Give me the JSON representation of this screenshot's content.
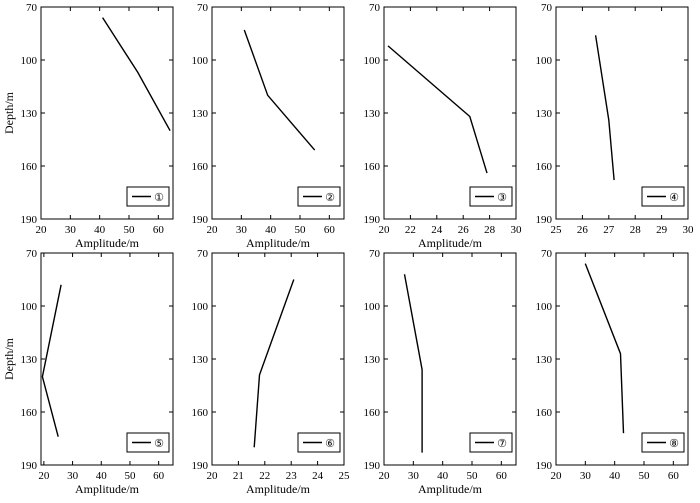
{
  "chart_data": [
    {
      "type": "line",
      "xlabel": "Amplitude/m",
      "ylabel": "Depth/m",
      "xlim": [
        20,
        65
      ],
      "ylim": [
        70,
        190
      ],
      "xticks": [
        20,
        30,
        40,
        50,
        60
      ],
      "yticks": [
        70,
        100,
        130,
        160,
        190
      ],
      "series": [
        {
          "name": "①",
          "x": [
            41,
            53,
            64
          ],
          "y": [
            76,
            107,
            140
          ]
        }
      ]
    },
    {
      "type": "line",
      "xlabel": "Amplitude/m",
      "ylabel": "",
      "xlim": [
        20,
        65
      ],
      "ylim": [
        70,
        190
      ],
      "xticks": [
        20,
        30,
        40,
        50,
        60
      ],
      "yticks": [
        70,
        100,
        130,
        160,
        190
      ],
      "series": [
        {
          "name": "②",
          "x": [
            31,
            39,
            55
          ],
          "y": [
            83,
            120,
            151
          ]
        }
      ]
    },
    {
      "type": "line",
      "xlabel": "Amplitude/m",
      "ylabel": "",
      "xlim": [
        20,
        30
      ],
      "ylim": [
        70,
        190
      ],
      "xticks": [
        20,
        22,
        24,
        26,
        28,
        30
      ],
      "yticks": [
        70,
        100,
        130,
        160,
        190
      ],
      "series": [
        {
          "name": "③",
          "x": [
            20.3,
            26.5,
            27.8
          ],
          "y": [
            92,
            132,
            164
          ]
        }
      ]
    },
    {
      "type": "line",
      "xlabel": "",
      "ylabel": "",
      "xlim": [
        25,
        30
      ],
      "ylim": [
        70,
        190
      ],
      "xticks": [
        25,
        26,
        27,
        28,
        29,
        30
      ],
      "yticks": [
        70,
        100,
        130,
        160,
        190
      ],
      "series": [
        {
          "name": "④",
          "x": [
            26.5,
            27,
            27.2
          ],
          "y": [
            86,
            134,
            168
          ]
        }
      ]
    },
    {
      "type": "line",
      "xlabel": "Amplitude/m",
      "ylabel": "Depth/m",
      "xlim": [
        19,
        65
      ],
      "ylim": [
        70,
        190
      ],
      "xticks": [
        20,
        30,
        40,
        50,
        60
      ],
      "yticks": [
        70,
        100,
        130,
        160,
        190
      ],
      "series": [
        {
          "name": "⑤",
          "x": [
            26,
            19.5,
            25
          ],
          "y": [
            88,
            140,
            174
          ]
        }
      ]
    },
    {
      "type": "line",
      "xlabel": "Amplitude/m",
      "ylabel": "",
      "xlim": [
        20,
        25
      ],
      "ylim": [
        70,
        190
      ],
      "xticks": [
        20,
        21,
        22,
        23,
        24,
        25
      ],
      "yticks": [
        70,
        100,
        130,
        160,
        190
      ],
      "series": [
        {
          "name": "⑥",
          "x": [
            23.1,
            21.8,
            21.6
          ],
          "y": [
            85,
            139,
            180
          ]
        }
      ]
    },
    {
      "type": "line",
      "xlabel": "Amplitude/m",
      "ylabel": "",
      "xlim": [
        20,
        65
      ],
      "ylim": [
        70,
        190
      ],
      "xticks": [
        20,
        30,
        40,
        50,
        60
      ],
      "yticks": [
        70,
        100,
        130,
        160,
        190
      ],
      "series": [
        {
          "name": "⑦",
          "x": [
            27,
            33,
            33
          ],
          "y": [
            82,
            136,
            183
          ]
        }
      ]
    },
    {
      "type": "line",
      "xlabel": "",
      "ylabel": "",
      "xlim": [
        20,
        65
      ],
      "ylim": [
        70,
        190
      ],
      "xticks": [
        20,
        30,
        40,
        50,
        60
      ],
      "yticks": [
        70,
        100,
        130,
        160,
        190
      ],
      "series": [
        {
          "name": "⑧",
          "x": [
            30,
            42,
            43
          ],
          "y": [
            76,
            127,
            172
          ]
        }
      ]
    }
  ]
}
